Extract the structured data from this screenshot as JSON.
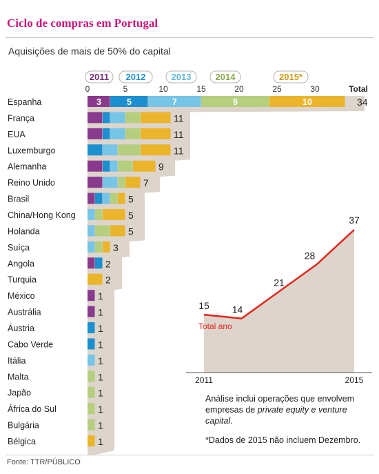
{
  "title": "Ciclo de compras em Portugal",
  "subtitle": "Aquisições de mais de 50% do capital",
  "source": "Fonte: TTR/PÚBLICO",
  "notes": {
    "line1": "Análise inclui operações que envolvem",
    "line2a": "empresas de ",
    "line2b": "private equity e venture",
    "line3": "capital",
    "line3b": ".",
    "footnote": "*Dados de 2015 não incluem Dezembro."
  },
  "colors": {
    "2011": "#8a3a8c",
    "2012": "#1c8fcf",
    "2013": "#76c4e6",
    "2014": "#b5cf7e",
    "2015": "#eab52a",
    "shadow": "#ddd4cb",
    "line": "#e1261c"
  },
  "chart_data": [
    {
      "type": "bar",
      "stacked": true,
      "orientation": "horizontal",
      "legend": [
        "2011",
        "2012",
        "2013",
        "2014",
        "2015*"
      ],
      "x_ticks": [
        0,
        5,
        10,
        15,
        20,
        25,
        30
      ],
      "xlim": [
        0,
        34
      ],
      "total_label": "Total",
      "categories": [
        "Espanha",
        "França",
        "EUA",
        "Luxemburgo",
        "Alemanha",
        "Reino Unido",
        "Brasil",
        "China/Hong Kong",
        "Holanda",
        "Suíça",
        "Angola",
        "Turquia",
        "México",
        "Austrália",
        "Áustria",
        "Cabo Verde",
        "Itália",
        "Malta",
        "Japão",
        "África do Sul",
        "Bulgária",
        "Bélgica"
      ],
      "series": [
        {
          "name": "2011",
          "values": [
            3,
            2,
            2,
            0,
            2,
            2,
            1,
            0,
            0,
            0,
            1,
            0,
            1,
            1,
            0,
            0,
            0,
            0,
            0,
            0,
            0,
            0
          ]
        },
        {
          "name": "2012",
          "values": [
            5,
            1,
            1,
            2,
            1,
            0,
            1,
            0,
            0,
            0,
            1,
            0,
            0,
            0,
            1,
            1,
            0,
            0,
            0,
            0,
            0,
            0
          ]
        },
        {
          "name": "2013",
          "values": [
            7,
            2,
            2,
            2,
            1,
            2,
            1,
            1,
            1,
            1,
            0,
            0,
            0,
            0,
            0,
            0,
            1,
            0,
            0,
            0,
            0,
            0
          ]
        },
        {
          "name": "2014",
          "values": [
            9,
            2,
            2,
            3,
            2,
            1,
            1,
            1,
            2,
            1,
            0,
            0,
            0,
            0,
            0,
            0,
            0,
            1,
            1,
            1,
            1,
            0
          ]
        },
        {
          "name": "2015*",
          "values": [
            10,
            4,
            4,
            4,
            3,
            2,
            1,
            3,
            2,
            1,
            0,
            2,
            0,
            0,
            0,
            0,
            0,
            0,
            0,
            0,
            0,
            1
          ]
        }
      ],
      "totals": [
        34,
        11,
        11,
        11,
        9,
        7,
        5,
        5,
        5,
        3,
        2,
        2,
        1,
        1,
        1,
        1,
        1,
        1,
        1,
        1,
        1,
        1
      ],
      "segment_labels_row0": [
        3,
        5,
        7,
        9,
        10
      ]
    },
    {
      "type": "area",
      "title": "Total ano",
      "x": [
        2011,
        2012,
        2013,
        2014,
        2015
      ],
      "y": [
        15,
        14,
        21,
        28,
        37
      ],
      "x_tick_labels": [
        "2011",
        "2015"
      ]
    }
  ]
}
